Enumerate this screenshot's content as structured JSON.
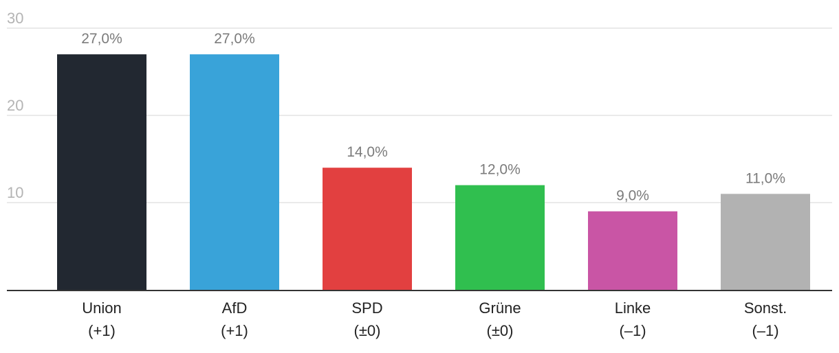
{
  "chart_data": {
    "type": "bar",
    "categories": [
      "Union",
      "AfD",
      "SPD",
      "Grüne",
      "Linke",
      "Sonst."
    ],
    "changes": [
      "(+1)",
      "(+1)",
      "(±0)",
      "(±0)",
      "(–1)",
      "(–1)"
    ],
    "values": [
      27.0,
      27.0,
      14.0,
      12.0,
      9.0,
      11.0
    ],
    "value_labels": [
      "27,0%",
      "27,0%",
      "14,0%",
      "12,0%",
      "9,0%",
      "11,0%"
    ],
    "colors": [
      "#222831",
      "#39a3d9",
      "#e24040",
      "#30bf4f",
      "#c955a5",
      "#b2b2b2"
    ],
    "ylim": [
      0,
      30
    ],
    "yticks": [
      10,
      20,
      30
    ],
    "ytick_labels": [
      "10",
      "20",
      "30"
    ],
    "grid": true
  }
}
